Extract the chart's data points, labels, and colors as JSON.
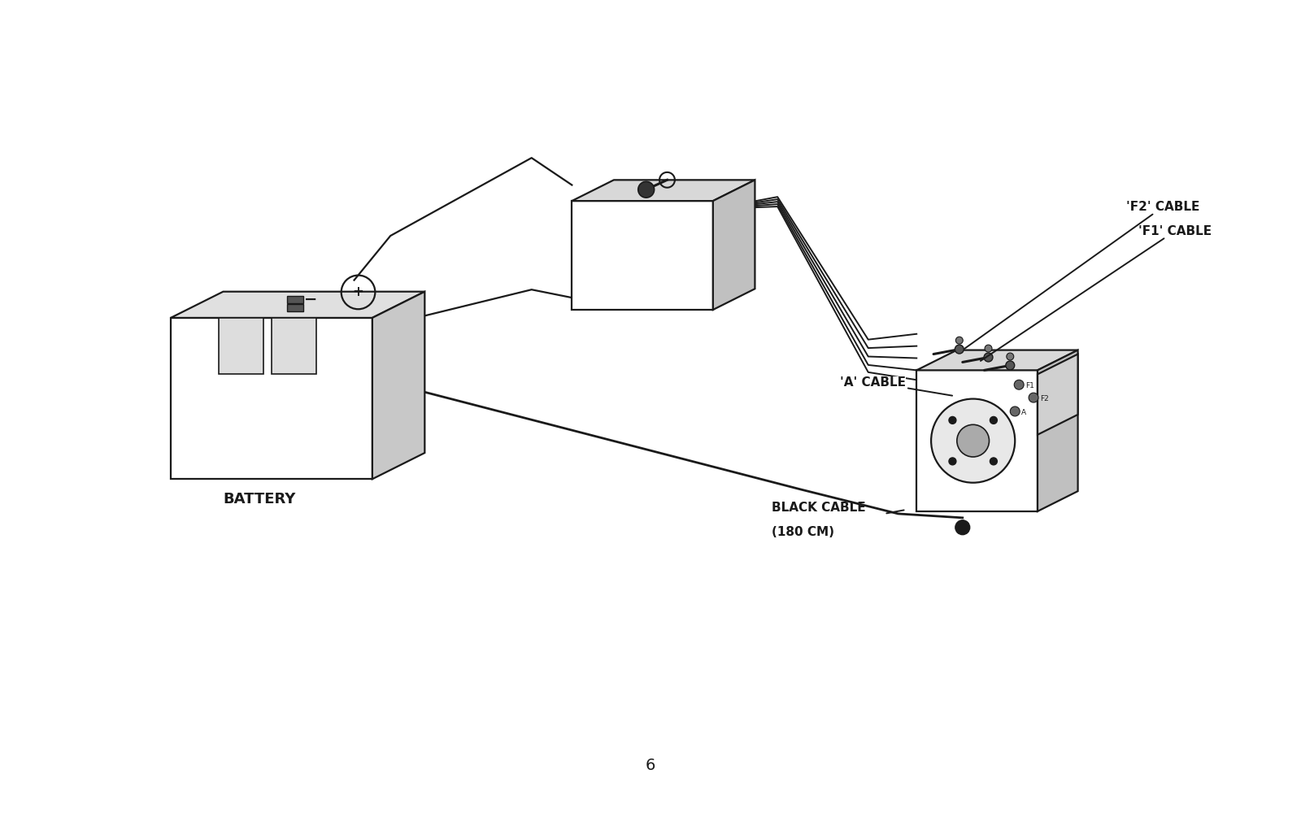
{
  "bg_color": "#ffffff",
  "line_color": "#1a1a1a",
  "page_number": "6",
  "labels": {
    "battery": "BATTERY",
    "black_cable_line1": "BLACK CABLE",
    "black_cable_line2": "(180 CM)",
    "a_cable": "'A' CABLE",
    "f1_cable": "'F1' CABLE",
    "f2_cable": "'F2' CABLE"
  },
  "terminal_labels": {
    "plus": "+",
    "minus": "−",
    "f1": "F1",
    "f2": "F2",
    "a": "A"
  }
}
